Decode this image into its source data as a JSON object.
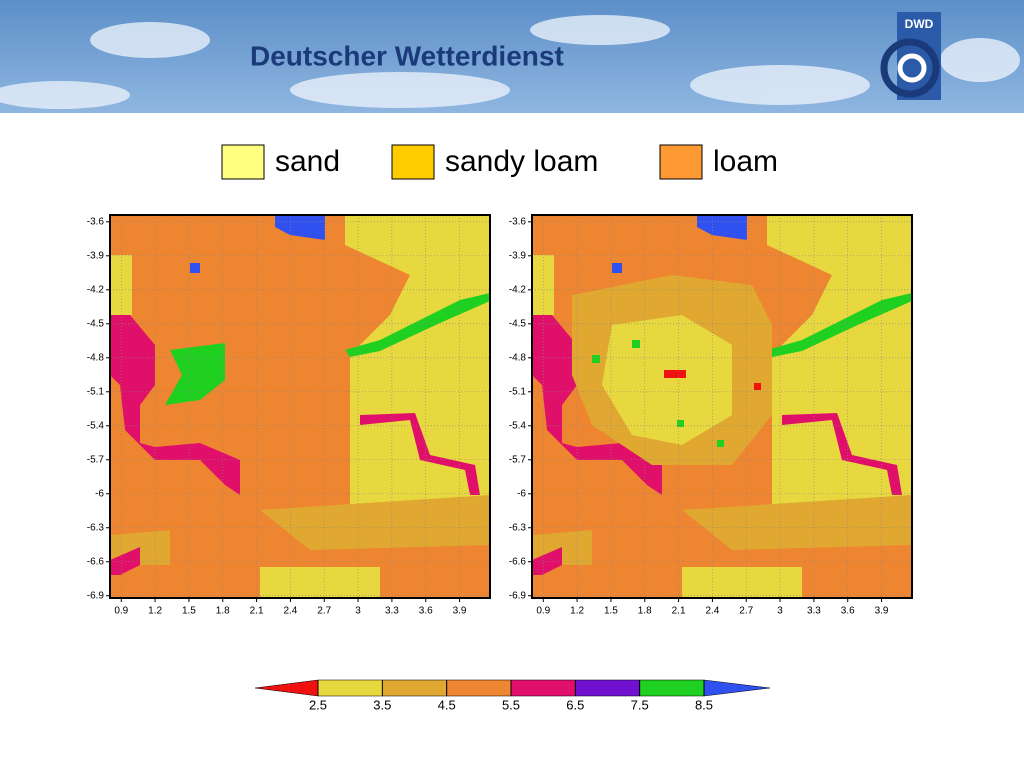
{
  "header": {
    "title": "Deutscher Wetterdienst",
    "logo": "DWD"
  },
  "legend": [
    {
      "label": "sand",
      "color": "#ffff80"
    },
    {
      "label": "sandy loam",
      "color": "#ffcc00"
    },
    {
      "label": "loam",
      "color": "#ff9933"
    }
  ],
  "chart_data": [
    {
      "type": "heatmap",
      "xlim": [
        0.8,
        4.17
      ],
      "ylim": [
        -6.92,
        -3.54
      ],
      "xticks": [
        0.9,
        1.2,
        1.5,
        1.8,
        2.1,
        2.4,
        2.7,
        3,
        3.3,
        3.6,
        3.9
      ],
      "yticks": [
        -3.6,
        -3.9,
        -4.2,
        -4.5,
        -4.8,
        -5.1,
        -5.4,
        -5.7,
        -6,
        -6.3,
        -6.6,
        -6.9
      ],
      "grid": true
    },
    {
      "type": "heatmap",
      "xlim": [
        0.8,
        4.17
      ],
      "ylim": [
        -6.92,
        -3.54
      ],
      "xticks": [
        0.9,
        1.2,
        1.5,
        1.8,
        2.1,
        2.4,
        2.7,
        3,
        3.3,
        3.6,
        3.9
      ],
      "yticks": [
        -3.6,
        -3.9,
        -4.2,
        -4.5,
        -4.8,
        -5.1,
        -5.4,
        -5.7,
        -6,
        -6.3,
        -6.6,
        -6.9
      ],
      "grid": true
    }
  ],
  "colorbar": {
    "ticks": [
      2.5,
      3.5,
      4.5,
      5.5,
      6.5,
      7.5,
      8.5
    ],
    "colors": [
      "#f01010",
      "#e8d840",
      "#e0a830",
      "#ee8530",
      "#e0106a",
      "#7010d0",
      "#20d020",
      "#3050f0"
    ]
  }
}
